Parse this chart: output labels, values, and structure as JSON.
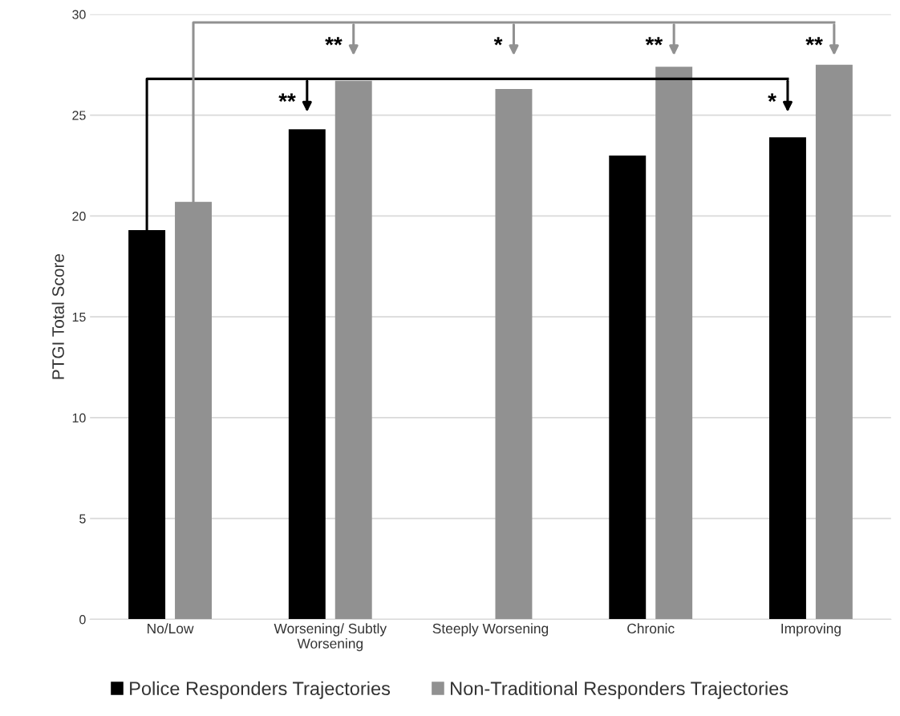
{
  "chart_data": {
    "type": "bar",
    "ylabel": "PTGI Total Score",
    "categories": [
      "No/Low",
      "Worsening/ Subtly\nWorsening",
      "Steeply Worsening",
      "Chronic",
      "Improving"
    ],
    "series": [
      {
        "name": "Police Responders Trajectories",
        "color": "#000000",
        "values": [
          19.3,
          24.3,
          null,
          23.0,
          23.9
        ]
      },
      {
        "name": "Non-Traditional Responders Trajectories",
        "color": "#919191",
        "values": [
          20.7,
          26.7,
          26.3,
          27.4,
          27.5
        ]
      }
    ],
    "ylim": [
      0,
      30
    ],
    "yticks": [
      0,
      5,
      10,
      15,
      20,
      25,
      30
    ],
    "grid": "y",
    "legend": "bottom",
    "annotations": [
      "**",
      "*",
      "**",
      "*",
      "**",
      "**"
    ]
  }
}
